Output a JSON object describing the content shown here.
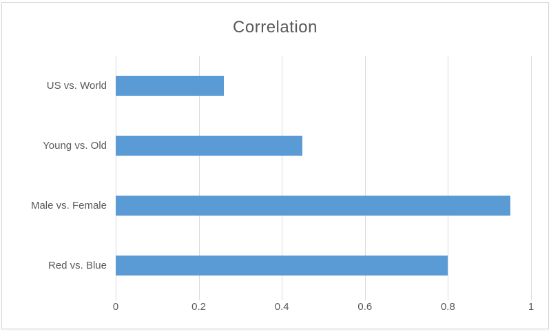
{
  "chart_data": {
    "type": "bar",
    "orientation": "horizontal",
    "title": "Correlation",
    "categories": [
      "US vs. World",
      "Young vs. Old",
      "Male vs. Female",
      "Red vs. Blue"
    ],
    "values": [
      0.26,
      0.45,
      0.95,
      0.8
    ],
    "xlabel": "",
    "ylabel": "",
    "xlim": [
      0,
      1
    ],
    "x_ticks": [
      0,
      0.2,
      0.4,
      0.6,
      0.8,
      1
    ],
    "x_tick_labels": [
      "0",
      "0.2",
      "0.4",
      "0.6",
      "0.8",
      "1"
    ],
    "grid": "vertical-only",
    "legend": "none",
    "colors": {
      "bar_fill": "#5b9bd5",
      "text": "#595959",
      "gridline": "#d9d9d9",
      "chart_border": "#d9d9d9",
      "background": "#ffffff"
    }
  }
}
